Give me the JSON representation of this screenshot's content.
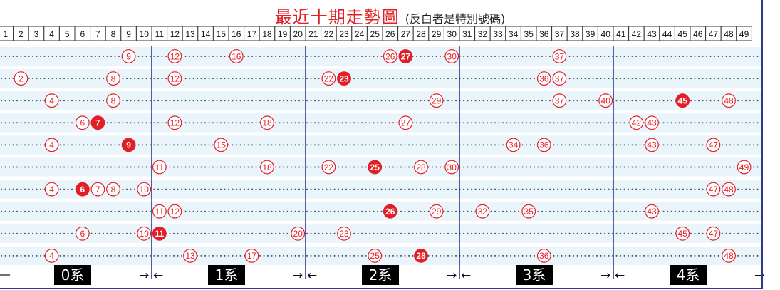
{
  "title": "最近十期走勢圖",
  "note": "(反白者是特別號碼)",
  "colors": {
    "ball": "#e21f26",
    "separator": "#2b3a8c",
    "band": "#eaf4fb",
    "group_box": "#000000"
  },
  "chart_data": {
    "type": "scatter",
    "numbers": [
      1,
      2,
      3,
      4,
      5,
      6,
      7,
      8,
      9,
      10,
      11,
      12,
      13,
      14,
      15,
      16,
      17,
      18,
      19,
      20,
      21,
      22,
      23,
      24,
      25,
      26,
      27,
      28,
      29,
      30,
      31,
      32,
      33,
      34,
      35,
      36,
      37,
      38,
      39,
      40,
      41,
      42,
      43,
      44,
      45,
      46,
      47,
      48,
      49
    ],
    "draws": [
      {
        "numbers": [
          9,
          12,
          16,
          26,
          30,
          37
        ],
        "special": 27
      },
      {
        "numbers": [
          2,
          8,
          12,
          22,
          36,
          37
        ],
        "special": 23
      },
      {
        "numbers": [
          4,
          8,
          29,
          37,
          40,
          48
        ],
        "special": 45
      },
      {
        "numbers": [
          6,
          12,
          18,
          27,
          42,
          43
        ],
        "special": 7
      },
      {
        "numbers": [
          4,
          15,
          34,
          36,
          43,
          47
        ],
        "special": 9
      },
      {
        "numbers": [
          11,
          18,
          22,
          28,
          30,
          49
        ],
        "special": 25
      },
      {
        "numbers": [
          4,
          7,
          8,
          10,
          47,
          48
        ],
        "special": 6
      },
      {
        "numbers": [
          11,
          12,
          29,
          32,
          35,
          43
        ],
        "special": 26
      },
      {
        "numbers": [
          6,
          10,
          20,
          23,
          45,
          47
        ],
        "special": 11
      },
      {
        "numbers": [
          4,
          13,
          17,
          25,
          36,
          48
        ],
        "special": 28
      }
    ],
    "groups": [
      {
        "label": "0系",
        "arrow_left": "",
        "arrow_right": "→"
      },
      {
        "label": "1系",
        "arrow_left": "←",
        "arrow_right": "→"
      },
      {
        "label": "2系",
        "arrow_left": "←",
        "arrow_right": "→"
      },
      {
        "label": "3系",
        "arrow_left": "←",
        "arrow_right": "→"
      },
      {
        "label": "4系",
        "arrow_left": "←",
        "arrow_right": "→"
      }
    ]
  }
}
